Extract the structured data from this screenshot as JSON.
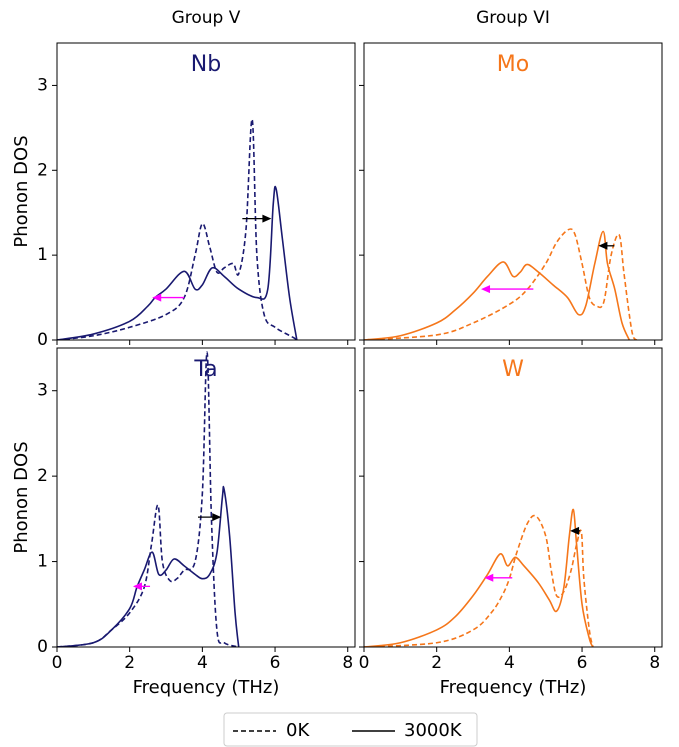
{
  "column_titles": [
    "Group V",
    "Group VI"
  ],
  "legend_color": "#000000",
  "chart_data": [
    {
      "type": "line",
      "title": "Nb",
      "color": "#191970",
      "ylabel": "Phonon DOS",
      "xlim": [
        0,
        8.2
      ],
      "ylim": [
        0,
        3.5
      ],
      "xticks": [
        0,
        2,
        4,
        6,
        8
      ],
      "yticks": [
        0,
        1,
        2,
        3
      ],
      "show_xticklabels": false,
      "show_yticklabels": true,
      "series": [
        {
          "name": "0K",
          "linestyle": "dashed",
          "x": [
            0,
            1,
            2,
            3,
            3.5,
            3.8,
            4.0,
            4.2,
            4.4,
            4.6,
            4.85,
            5.0,
            5.2,
            5.37,
            5.5,
            5.7,
            6.0,
            6.5,
            6.6
          ],
          "values": [
            0,
            0.05,
            0.15,
            0.3,
            0.5,
            1.0,
            1.37,
            1.1,
            0.8,
            0.85,
            0.9,
            0.78,
            1.3,
            2.6,
            1.0,
            0.3,
            0.15,
            0.03,
            0
          ]
        },
        {
          "name": "3000K",
          "linestyle": "solid",
          "x": [
            0,
            1,
            2,
            2.5,
            2.7,
            3,
            3.5,
            3.8,
            4.0,
            4.27,
            4.6,
            5.0,
            5.5,
            5.8,
            5.95,
            6.03,
            6.2,
            6.4,
            6.6
          ],
          "values": [
            0,
            0.07,
            0.22,
            0.4,
            0.5,
            0.6,
            0.81,
            0.6,
            0.65,
            0.85,
            0.75,
            0.6,
            0.5,
            0.6,
            1.6,
            1.78,
            1.2,
            0.5,
            0
          ]
        }
      ],
      "arrows": [
        {
          "x": [
            5.1,
            5.9
          ],
          "y": 1.43,
          "color": "#000000"
        },
        {
          "x": [
            3.5,
            2.62
          ],
          "y": 0.5,
          "color": "#ff00ff"
        }
      ]
    },
    {
      "type": "line",
      "title": "Mo",
      "color": "#f5761a",
      "xlim": [
        0,
        8.2
      ],
      "ylim": [
        0,
        3.5
      ],
      "xticks": [
        0,
        2,
        4,
        6,
        8
      ],
      "yticks": [
        0,
        1,
        2,
        3
      ],
      "show_xticklabels": false,
      "show_yticklabels": false,
      "series": [
        {
          "name": "0K",
          "linestyle": "dashed",
          "x": [
            0,
            2,
            3,
            4,
            4.5,
            5.0,
            5.3,
            5.62,
            5.8,
            6.0,
            6.2,
            6.4,
            6.6,
            6.8,
            7.02,
            7.15,
            7.3,
            7.4,
            7.5
          ],
          "values": [
            0,
            0.06,
            0.2,
            0.42,
            0.6,
            0.9,
            1.15,
            1.3,
            1.25,
            0.9,
            0.5,
            0.4,
            0.45,
            1.0,
            1.24,
            0.8,
            0.3,
            0.05,
            0
          ]
        },
        {
          "name": "3000K",
          "linestyle": "solid",
          "x": [
            0,
            1,
            2,
            2.5,
            3,
            3.4,
            3.83,
            4.1,
            4.3,
            4.49,
            4.8,
            5.2,
            5.6,
            5.9,
            6.1,
            6.35,
            6.58,
            6.7,
            6.9,
            7.1,
            7.3
          ],
          "values": [
            0,
            0.05,
            0.2,
            0.35,
            0.55,
            0.75,
            0.92,
            0.75,
            0.8,
            0.89,
            0.8,
            0.65,
            0.5,
            0.3,
            0.4,
            0.9,
            1.28,
            0.9,
            0.6,
            0.2,
            0
          ]
        }
      ],
      "arrows": [
        {
          "x": [
            6.89,
            6.45
          ],
          "y": 1.11,
          "color": "#000000"
        },
        {
          "x": [
            4.66,
            3.22
          ],
          "y": 0.6,
          "color": "#ff00ff"
        }
      ]
    },
    {
      "type": "line",
      "title": "Ta",
      "color": "#191970",
      "ylabel": "Phonon DOS",
      "xlabel": "Frequency (THz)",
      "xlim": [
        0,
        8.2
      ],
      "ylim": [
        0,
        3.5
      ],
      "xticks": [
        0,
        2,
        4,
        6,
        8
      ],
      "yticks": [
        0,
        1,
        2,
        3
      ],
      "show_xticklabels": true,
      "show_yticklabels": true,
      "series": [
        {
          "name": "0K",
          "linestyle": "dashed",
          "x": [
            0,
            1,
            1.5,
            2,
            2.4,
            2.6,
            2.78,
            2.9,
            3.1,
            3.3,
            3.5,
            3.8,
            4.0,
            4.13,
            4.25,
            4.4,
            4.6,
            5.0
          ],
          "values": [
            0,
            0.05,
            0.2,
            0.4,
            0.7,
            1.2,
            1.66,
            1.0,
            0.78,
            0.8,
            0.9,
            1.0,
            1.8,
            3.45,
            1.5,
            0.2,
            0.05,
            0
          ]
        },
        {
          "name": "3000K",
          "linestyle": "solid",
          "x": [
            0,
            1,
            1.5,
            2,
            2.2,
            2.4,
            2.62,
            2.8,
            3.0,
            3.22,
            3.5,
            3.8,
            4.0,
            4.2,
            4.4,
            4.55,
            4.6,
            4.75,
            4.9,
            5.0
          ],
          "values": [
            0,
            0.05,
            0.2,
            0.45,
            0.7,
            0.9,
            1.11,
            0.85,
            0.9,
            1.03,
            0.95,
            0.85,
            0.8,
            0.85,
            1.1,
            1.75,
            1.84,
            1.3,
            0.4,
            0
          ]
        }
      ],
      "arrows": [
        {
          "x": [
            3.88,
            4.52
          ],
          "y": 1.52,
          "color": "#000000"
        },
        {
          "x": [
            2.56,
            2.09
          ],
          "y": 0.71,
          "color": "#ff00ff"
        }
      ]
    },
    {
      "type": "line",
      "title": "W",
      "color": "#f5761a",
      "xlabel": "Frequency (THz)",
      "xlim": [
        0,
        8.2
      ],
      "ylim": [
        0,
        3.5
      ],
      "xticks": [
        0,
        2,
        4,
        6,
        8
      ],
      "yticks": [
        0,
        1,
        2,
        3
      ],
      "show_xticklabels": true,
      "show_yticklabels": false,
      "series": [
        {
          "name": "0K",
          "linestyle": "dashed",
          "x": [
            0,
            2,
            3,
            3.5,
            3.8,
            4.0,
            4.2,
            4.5,
            4.74,
            5.0,
            5.15,
            5.3,
            5.5,
            5.7,
            5.85,
            5.98,
            6.05,
            6.2,
            6.3
          ],
          "values": [
            0,
            0.05,
            0.2,
            0.4,
            0.6,
            0.8,
            1.1,
            1.45,
            1.53,
            1.3,
            0.9,
            0.6,
            0.65,
            0.9,
            1.2,
            1.35,
            0.8,
            0.2,
            0
          ]
        },
        {
          "name": "3000K",
          "linestyle": "solid",
          "x": [
            0,
            1,
            2,
            2.5,
            3,
            3.4,
            3.75,
            3.95,
            4.16,
            4.4,
            4.8,
            5.1,
            5.3,
            5.5,
            5.65,
            5.76,
            5.85,
            6.0,
            6.2,
            6.3
          ],
          "values": [
            0,
            0.05,
            0.2,
            0.35,
            0.6,
            0.85,
            1.09,
            0.95,
            1.05,
            0.95,
            0.75,
            0.55,
            0.42,
            0.7,
            1.3,
            1.61,
            1.2,
            0.5,
            0.1,
            0
          ]
        }
      ],
      "arrows": [
        {
          "x": [
            5.95,
            5.67
          ],
          "y": 1.36,
          "color": "#000000"
        },
        {
          "x": [
            4.08,
            3.31
          ],
          "y": 0.81,
          "color": "#ff00ff"
        }
      ]
    }
  ]
}
